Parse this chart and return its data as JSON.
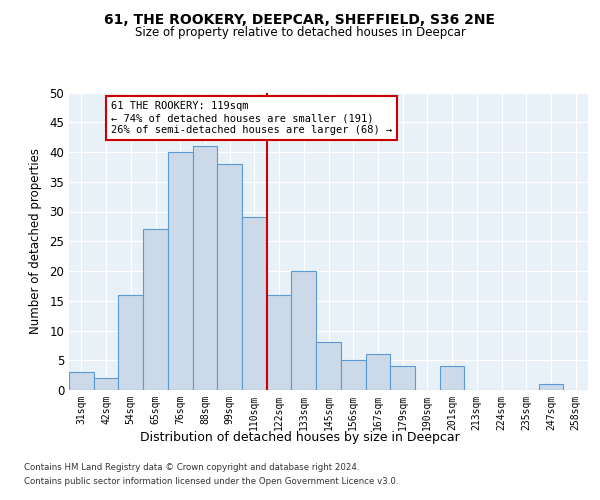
{
  "title1": "61, THE ROOKERY, DEEPCAR, SHEFFIELD, S36 2NE",
  "title2": "Size of property relative to detached houses in Deepcar",
  "xlabel": "Distribution of detached houses by size in Deepcar",
  "ylabel": "Number of detached properties",
  "bar_labels": [
    "31sqm",
    "42sqm",
    "54sqm",
    "65sqm",
    "76sqm",
    "88sqm",
    "99sqm",
    "110sqm",
    "122sqm",
    "133sqm",
    "145sqm",
    "156sqm",
    "167sqm",
    "179sqm",
    "190sqm",
    "201sqm",
    "213sqm",
    "224sqm",
    "235sqm",
    "247sqm",
    "258sqm"
  ],
  "bar_values": [
    3,
    2,
    16,
    27,
    40,
    41,
    38,
    29,
    16,
    20,
    8,
    5,
    6,
    4,
    0,
    4,
    0,
    0,
    0,
    1,
    0
  ],
  "bar_color": "#ccd9e8",
  "bar_edge_color": "#5b9bd5",
  "annotation_text": "61 THE ROOKERY: 119sqm\n← 74% of detached houses are smaller (191)\n26% of semi-detached houses are larger (68) →",
  "annotation_box_color": "#ffffff",
  "annotation_box_edge": "#cc0000",
  "ref_line_color": "#cc0000",
  "ylim": [
    0,
    50
  ],
  "yticks": [
    0,
    5,
    10,
    15,
    20,
    25,
    30,
    35,
    40,
    45,
    50
  ],
  "footer1": "Contains HM Land Registry data © Crown copyright and database right 2024.",
  "footer2": "Contains public sector information licensed under the Open Government Licence v3.0.",
  "bg_color": "#ffffff",
  "plot_bg_color": "#e8f0f8"
}
